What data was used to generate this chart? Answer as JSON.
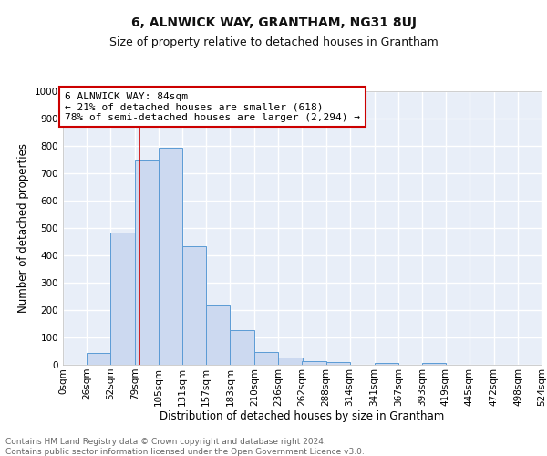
{
  "title": "6, ALNWICK WAY, GRANTHAM, NG31 8UJ",
  "subtitle": "Size of property relative to detached houses in Grantham",
  "xlabel": "Distribution of detached houses by size in Grantham",
  "ylabel": "Number of detached properties",
  "bar_color": "#ccd9f0",
  "bar_edge_color": "#5b9bd5",
  "background_color": "#e8eef8",
  "grid_color": "#ffffff",
  "bin_edges": [
    0,
    26,
    52,
    79,
    105,
    131,
    157,
    183,
    210,
    236,
    262,
    288,
    314,
    341,
    367,
    393,
    419,
    445,
    472,
    498,
    524
  ],
  "bar_heights": [
    0,
    42,
    485,
    750,
    795,
    432,
    220,
    127,
    48,
    28,
    15,
    10,
    0,
    8,
    0,
    8,
    0,
    0,
    0,
    0
  ],
  "property_size": 84,
  "vline_color": "#cc0000",
  "annotation_text": "6 ALNWICK WAY: 84sqm\n← 21% of detached houses are smaller (618)\n78% of semi-detached houses are larger (2,294) →",
  "annotation_box_color": "#ffffff",
  "annotation_box_edge_color": "#cc0000",
  "ylim": [
    0,
    1000
  ],
  "yticks": [
    0,
    100,
    200,
    300,
    400,
    500,
    600,
    700,
    800,
    900,
    1000
  ],
  "xtick_labels": [
    "0sqm",
    "26sqm",
    "52sqm",
    "79sqm",
    "105sqm",
    "131sqm",
    "157sqm",
    "183sqm",
    "210sqm",
    "236sqm",
    "262sqm",
    "288sqm",
    "314sqm",
    "341sqm",
    "367sqm",
    "393sqm",
    "419sqm",
    "445sqm",
    "472sqm",
    "498sqm",
    "524sqm"
  ],
  "footer_text": "Contains HM Land Registry data © Crown copyright and database right 2024.\nContains public sector information licensed under the Open Government Licence v3.0.",
  "title_fontsize": 10,
  "subtitle_fontsize": 9,
  "axis_label_fontsize": 8.5,
  "tick_fontsize": 7.5,
  "annotation_fontsize": 8,
  "footer_fontsize": 6.5
}
